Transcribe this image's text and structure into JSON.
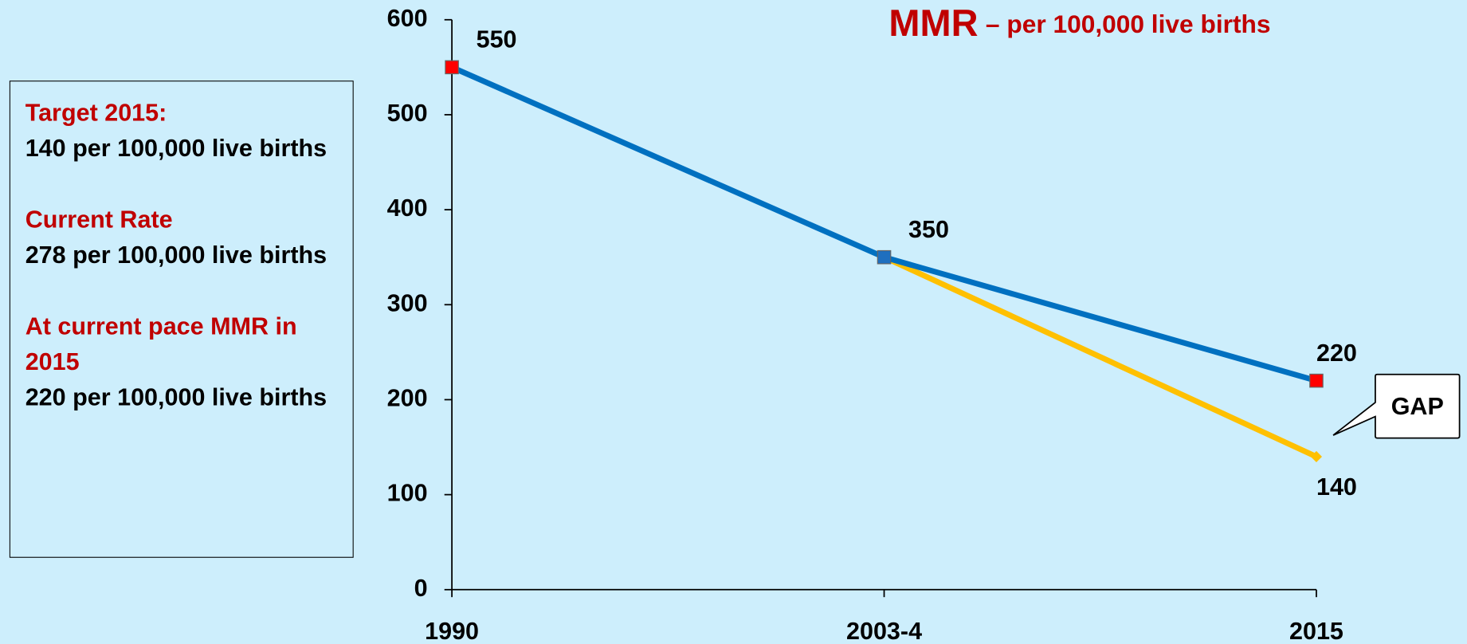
{
  "chart_data": {
    "type": "line",
    "title": "MMR",
    "subtitle": "– per 100,000 live births",
    "categories": [
      "1990",
      "2003-4",
      "2015"
    ],
    "series": [
      {
        "name": "Current pace",
        "color": "#0070c0",
        "marker": "square",
        "marker_colors": [
          "#ff0000",
          "#1f6fbf",
          "#ff0000"
        ],
        "values": [
          550,
          350,
          220
        ]
      },
      {
        "name": "Target",
        "color": "#ffc000",
        "marker": "diamond",
        "marker_colors": [
          null,
          null,
          "#ffc000"
        ],
        "values": [
          null,
          350,
          140
        ]
      }
    ],
    "ylim": [
      0,
      600
    ],
    "yticks": [
      0,
      100,
      200,
      300,
      400,
      500,
      600
    ],
    "annotation": "GAP"
  },
  "panel": [
    {
      "heading": "Target 2015:",
      "text": "140 per 100,000 live births"
    },
    {
      "heading": "Current Rate",
      "text": "278 per 100,000 live births"
    },
    {
      "heading": "At current pace MMR in 2015",
      "text": "220 per 100,000 live births"
    }
  ]
}
